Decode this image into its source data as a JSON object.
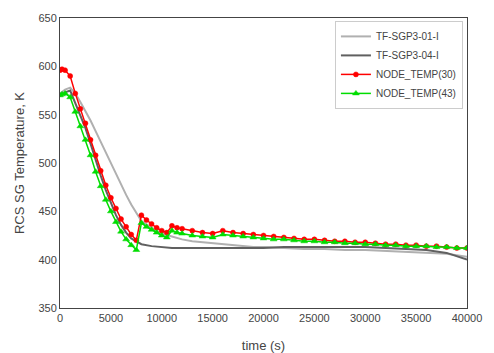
{
  "chart_data": {
    "type": "line",
    "xlabel": "time (s)",
    "ylabel": "RCS SG Temperature, K",
    "xlim": [
      0,
      40000
    ],
    "ylim": [
      350,
      650
    ],
    "xticks": [
      0,
      5000,
      10000,
      15000,
      20000,
      25000,
      30000,
      35000,
      40000
    ],
    "yticks": [
      350,
      400,
      450,
      500,
      550,
      600,
      650
    ],
    "grid": false,
    "legend": "upper right",
    "series": [
      {
        "name": "TF-SGP3-01-I",
        "color": "#b0b0b0",
        "line_style": "solid",
        "x": [
          0,
          200,
          500,
          1000,
          1500,
          2000,
          2500,
          3000,
          3500,
          4000,
          4500,
          5000,
          5500,
          6000,
          6500,
          7000,
          8000,
          9000,
          10000,
          11000,
          12000,
          13000,
          14000,
          15000,
          16000,
          17000,
          18000,
          19000,
          20000,
          22000,
          24000,
          26000,
          28000,
          30000,
          32000,
          34000,
          36000,
          38000,
          40000
        ],
        "values": [
          572,
          574,
          576,
          578,
          572,
          563,
          554,
          544,
          533,
          522,
          511,
          499,
          488,
          477,
          467,
          457,
          440,
          433,
          427,
          424,
          421,
          419,
          418,
          417,
          416,
          415,
          414,
          413,
          413,
          412,
          411,
          411,
          410,
          410,
          409,
          408,
          407,
          406,
          403
        ]
      },
      {
        "name": "TF-SGP3-04-I",
        "color": "#606060",
        "line_style": "solid",
        "x": [
          0,
          200,
          500,
          1000,
          1500,
          2000,
          2500,
          3000,
          3500,
          4000,
          4500,
          5000,
          5500,
          6000,
          6500,
          7000,
          8000,
          9000,
          10000,
          11000,
          12000,
          13000,
          14000,
          15000,
          16000,
          17000,
          18000,
          19000,
          20000,
          22000,
          24000,
          26000,
          28000,
          30000,
          32000,
          34000,
          36000,
          38000,
          40000
        ],
        "values": [
          569,
          571,
          573,
          575,
          562,
          549,
          536,
          520,
          503,
          487,
          472,
          458,
          446,
          436,
          428,
          422,
          416,
          414,
          413,
          412,
          412,
          412,
          412,
          412,
          412,
          412,
          412,
          412,
          412,
          413,
          413,
          413,
          413,
          413,
          412,
          411,
          410,
          407,
          400
        ]
      },
      {
        "name": "NODE_TEMP(30)",
        "color": "#ff0000",
        "line_style": "solid",
        "marker": "circle",
        "x": [
          0,
          200,
          500,
          1000,
          1500,
          2000,
          2500,
          3000,
          3500,
          4000,
          4500,
          5000,
          5500,
          6000,
          6500,
          7000,
          7500,
          8000,
          8500,
          9000,
          9500,
          10000,
          10500,
          11000,
          11500,
          12000,
          13000,
          14000,
          15000,
          16000,
          17000,
          18000,
          19000,
          20000,
          21000,
          22000,
          23000,
          24000,
          25000,
          26000,
          27000,
          28000,
          29000,
          30000,
          31000,
          32000,
          33000,
          34000,
          35000,
          36000,
          37000,
          38000,
          39000,
          40000
        ],
        "values": [
          596,
          597,
          596,
          590,
          572,
          556,
          541,
          524,
          508,
          492,
          477,
          464,
          453,
          442,
          434,
          426,
          420,
          446,
          441,
          437,
          433,
          430,
          428,
          435,
          433,
          432,
          430,
          428,
          427,
          430,
          428,
          427,
          426,
          425,
          424,
          423,
          422,
          421,
          421,
          420,
          419,
          419,
          418,
          418,
          417,
          416,
          416,
          415,
          415,
          414,
          414,
          413,
          412,
          412
        ]
      },
      {
        "name": "NODE_TEMP(43)",
        "color": "#00dd00",
        "line_style": "solid",
        "marker": "triangle-up",
        "x": [
          0,
          200,
          500,
          1000,
          1500,
          2000,
          2500,
          3000,
          3500,
          4000,
          4500,
          5000,
          5500,
          6000,
          6500,
          7000,
          7500,
          8000,
          8500,
          9000,
          9500,
          10000,
          10500,
          11000,
          11500,
          12000,
          13000,
          14000,
          15000,
          16000,
          17000,
          18000,
          19000,
          20000,
          21000,
          22000,
          23000,
          24000,
          25000,
          26000,
          27000,
          28000,
          29000,
          30000,
          31000,
          32000,
          33000,
          34000,
          35000,
          36000,
          37000,
          38000,
          39000,
          40000
        ],
        "values": [
          570,
          571,
          572,
          568,
          553,
          538,
          524,
          508,
          491,
          476,
          462,
          450,
          439,
          429,
          421,
          415,
          410,
          438,
          434,
          431,
          428,
          425,
          423,
          430,
          428,
          427,
          425,
          424,
          423,
          426,
          425,
          424,
          423,
          422,
          421,
          421,
          420,
          419,
          419,
          418,
          418,
          417,
          417,
          416,
          416,
          415,
          415,
          414,
          414,
          414,
          413,
          413,
          412,
          412
        ]
      }
    ]
  }
}
